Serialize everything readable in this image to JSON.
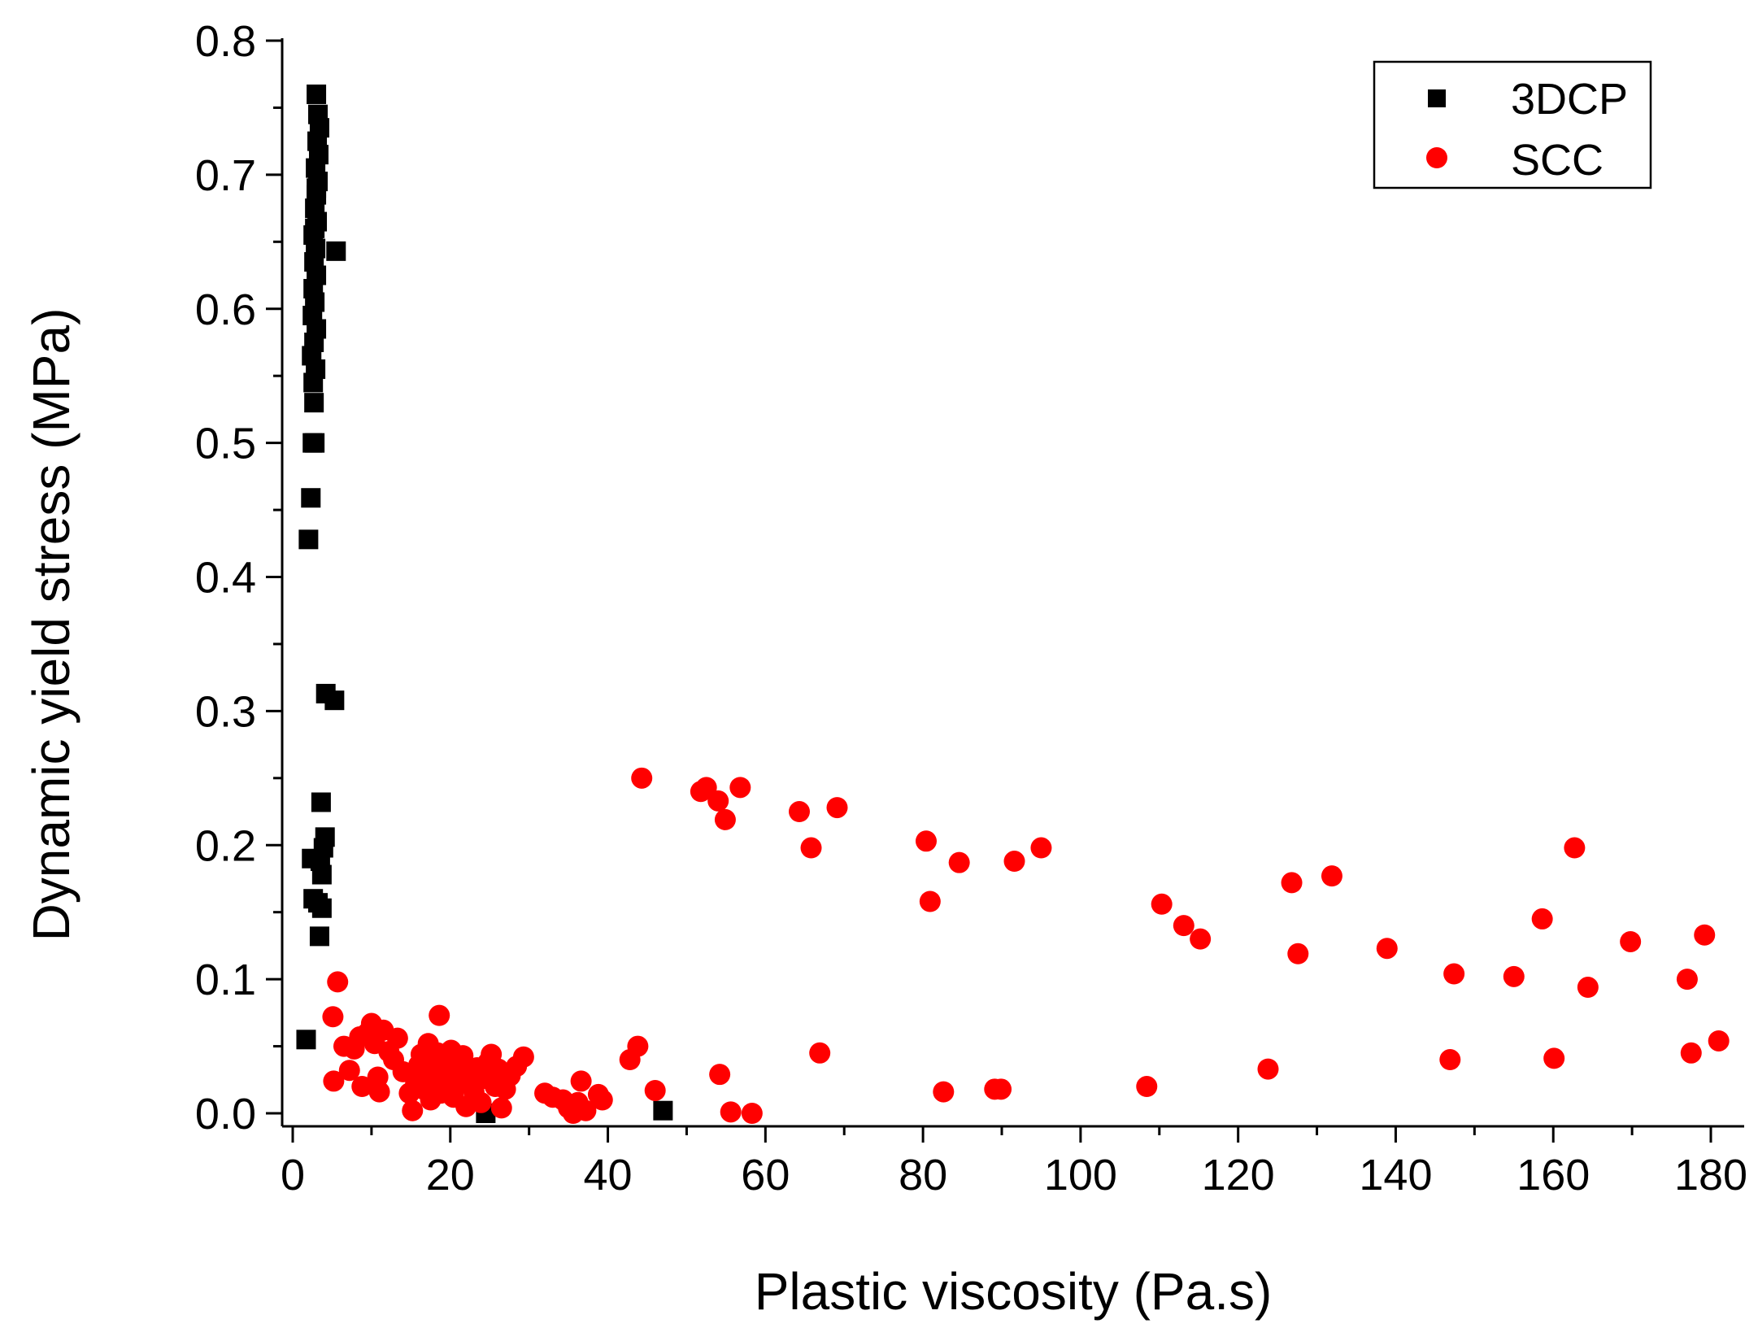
{
  "chart_data": {
    "type": "scatter",
    "xlabel": "Plastic viscosity (Pa.s)",
    "ylabel": "Dynamic yield stress (MPa)",
    "xlim": [
      -1,
      184
    ],
    "ylim": [
      -0.01,
      0.8
    ],
    "x_ticks": [
      0,
      20,
      40,
      60,
      80,
      100,
      120,
      140,
      160,
      180
    ],
    "x_tick_labels": [
      "0",
      "20",
      "40",
      "60",
      "80",
      "100",
      "120",
      "140",
      "160",
      "180"
    ],
    "y_ticks": [
      0.0,
      0.1,
      0.2,
      0.3,
      0.4,
      0.5,
      0.6,
      0.7,
      0.8
    ],
    "y_tick_labels": [
      "0.0",
      "0.1",
      "0.2",
      "0.3",
      "0.4",
      "0.5",
      "0.6",
      "0.7",
      "0.8"
    ],
    "grid": false,
    "legend_position": "top-right",
    "series": [
      {
        "name": "3DCP",
        "marker": "square",
        "color": "#000000",
        "points": [
          [
            1.7,
            0.055
          ],
          [
            2.0,
            0.428
          ],
          [
            2.3,
            0.459
          ],
          [
            2.5,
            0.5
          ],
          [
            2.8,
            0.5
          ],
          [
            2.7,
            0.53
          ],
          [
            2.6,
            0.545
          ],
          [
            2.9,
            0.555
          ],
          [
            2.4,
            0.565
          ],
          [
            2.7,
            0.575
          ],
          [
            3.0,
            0.585
          ],
          [
            2.5,
            0.595
          ],
          [
            2.8,
            0.605
          ],
          [
            2.6,
            0.615
          ],
          [
            3.0,
            0.625
          ],
          [
            2.7,
            0.635
          ],
          [
            2.9,
            0.645
          ],
          [
            2.6,
            0.655
          ],
          [
            3.1,
            0.665
          ],
          [
            2.8,
            0.675
          ],
          [
            3.0,
            0.685
          ],
          [
            3.2,
            0.695
          ],
          [
            2.9,
            0.705
          ],
          [
            3.3,
            0.715
          ],
          [
            3.1,
            0.725
          ],
          [
            3.4,
            0.735
          ],
          [
            3.2,
            0.745
          ],
          [
            3.0,
            0.69
          ],
          [
            2.8,
            0.66
          ],
          [
            3.0,
            0.76
          ],
          [
            5.5,
            0.643
          ],
          [
            4.2,
            0.313
          ],
          [
            5.3,
            0.308
          ],
          [
            3.6,
            0.232
          ],
          [
            4.1,
            0.206
          ],
          [
            3.9,
            0.198
          ],
          [
            2.4,
            0.19
          ],
          [
            3.5,
            0.188
          ],
          [
            3.7,
            0.178
          ],
          [
            2.6,
            0.16
          ],
          [
            3.2,
            0.157
          ],
          [
            3.7,
            0.153
          ],
          [
            3.4,
            0.132
          ],
          [
            24.5,
            0.0
          ],
          [
            47.0,
            0.002
          ]
        ]
      },
      {
        "name": "SCC",
        "marker": "circle",
        "color": "#ff0000",
        "points": [
          [
            5.7,
            0.098
          ],
          [
            5.1,
            0.072
          ],
          [
            5.2,
            0.024
          ],
          [
            6.5,
            0.05
          ],
          [
            7.2,
            0.032
          ],
          [
            7.8,
            0.048
          ],
          [
            8.5,
            0.057
          ],
          [
            8.8,
            0.02
          ],
          [
            9.5,
            0.06
          ],
          [
            10.0,
            0.067
          ],
          [
            10.4,
            0.052
          ],
          [
            10.8,
            0.027
          ],
          [
            11.0,
            0.016
          ],
          [
            11.5,
            0.062
          ],
          [
            12.2,
            0.046
          ],
          [
            12.8,
            0.04
          ],
          [
            13.3,
            0.056
          ],
          [
            14.0,
            0.031
          ],
          [
            14.8,
            0.015
          ],
          [
            15.2,
            0.002
          ],
          [
            15.6,
            0.022
          ],
          [
            16.0,
            0.036
          ],
          [
            16.3,
            0.044
          ],
          [
            16.6,
            0.018
          ],
          [
            17.0,
            0.029
          ],
          [
            17.2,
            0.052
          ],
          [
            17.5,
            0.01
          ],
          [
            17.8,
            0.038
          ],
          [
            18.1,
            0.024
          ],
          [
            18.4,
            0.045
          ],
          [
            18.6,
            0.073
          ],
          [
            18.8,
            0.015
          ],
          [
            19.0,
            0.033
          ],
          [
            19.3,
            0.02
          ],
          [
            19.6,
            0.04
          ],
          [
            19.8,
            0.027
          ],
          [
            20.1,
            0.047
          ],
          [
            20.4,
            0.012
          ],
          [
            20.8,
            0.035
          ],
          [
            21.2,
            0.022
          ],
          [
            21.6,
            0.043
          ],
          [
            22.0,
            0.005
          ],
          [
            22.5,
            0.03
          ],
          [
            23.0,
            0.016
          ],
          [
            23.4,
            0.034
          ],
          [
            23.9,
            0.008
          ],
          [
            24.3,
            0.026
          ],
          [
            24.8,
            0.038
          ],
          [
            25.2,
            0.044
          ],
          [
            25.7,
            0.02
          ],
          [
            26.1,
            0.033
          ],
          [
            26.5,
            0.004
          ],
          [
            27.0,
            0.018
          ],
          [
            27.6,
            0.028
          ],
          [
            28.4,
            0.035
          ],
          [
            29.3,
            0.042
          ],
          [
            32.0,
            0.015
          ],
          [
            33.0,
            0.012
          ],
          [
            34.3,
            0.01
          ],
          [
            35.0,
            0.004
          ],
          [
            35.6,
            0.0
          ],
          [
            36.2,
            0.008
          ],
          [
            36.6,
            0.024
          ],
          [
            37.2,
            0.002
          ],
          [
            38.8,
            0.014
          ],
          [
            39.3,
            0.01
          ],
          [
            42.8,
            0.04
          ],
          [
            43.8,
            0.05
          ],
          [
            44.3,
            0.25
          ],
          [
            46.0,
            0.017
          ],
          [
            51.8,
            0.24
          ],
          [
            52.5,
            0.243
          ],
          [
            54.0,
            0.233
          ],
          [
            54.2,
            0.029
          ],
          [
            54.9,
            0.219
          ],
          [
            55.6,
            0.001
          ],
          [
            56.8,
            0.243
          ],
          [
            58.3,
            0.0
          ],
          [
            64.3,
            0.225
          ],
          [
            65.8,
            0.198
          ],
          [
            66.9,
            0.045
          ],
          [
            69.1,
            0.228
          ],
          [
            80.4,
            0.203
          ],
          [
            80.9,
            0.158
          ],
          [
            82.6,
            0.016
          ],
          [
            84.6,
            0.187
          ],
          [
            89.1,
            0.018
          ],
          [
            89.9,
            0.018
          ],
          [
            91.6,
            0.188
          ],
          [
            95.0,
            0.198
          ],
          [
            108.4,
            0.02
          ],
          [
            110.3,
            0.156
          ],
          [
            113.1,
            0.14
          ],
          [
            115.2,
            0.13
          ],
          [
            123.8,
            0.033
          ],
          [
            126.8,
            0.172
          ],
          [
            127.6,
            0.119
          ],
          [
            131.9,
            0.177
          ],
          [
            138.9,
            0.123
          ],
          [
            146.9,
            0.04
          ],
          [
            147.4,
            0.104
          ],
          [
            155.0,
            0.102
          ],
          [
            158.6,
            0.145
          ],
          [
            160.1,
            0.041
          ],
          [
            162.7,
            0.198
          ],
          [
            164.4,
            0.094
          ],
          [
            169.8,
            0.128
          ],
          [
            177.0,
            0.1
          ],
          [
            177.5,
            0.045
          ],
          [
            179.2,
            0.133
          ],
          [
            181.0,
            0.054
          ]
        ]
      }
    ]
  }
}
